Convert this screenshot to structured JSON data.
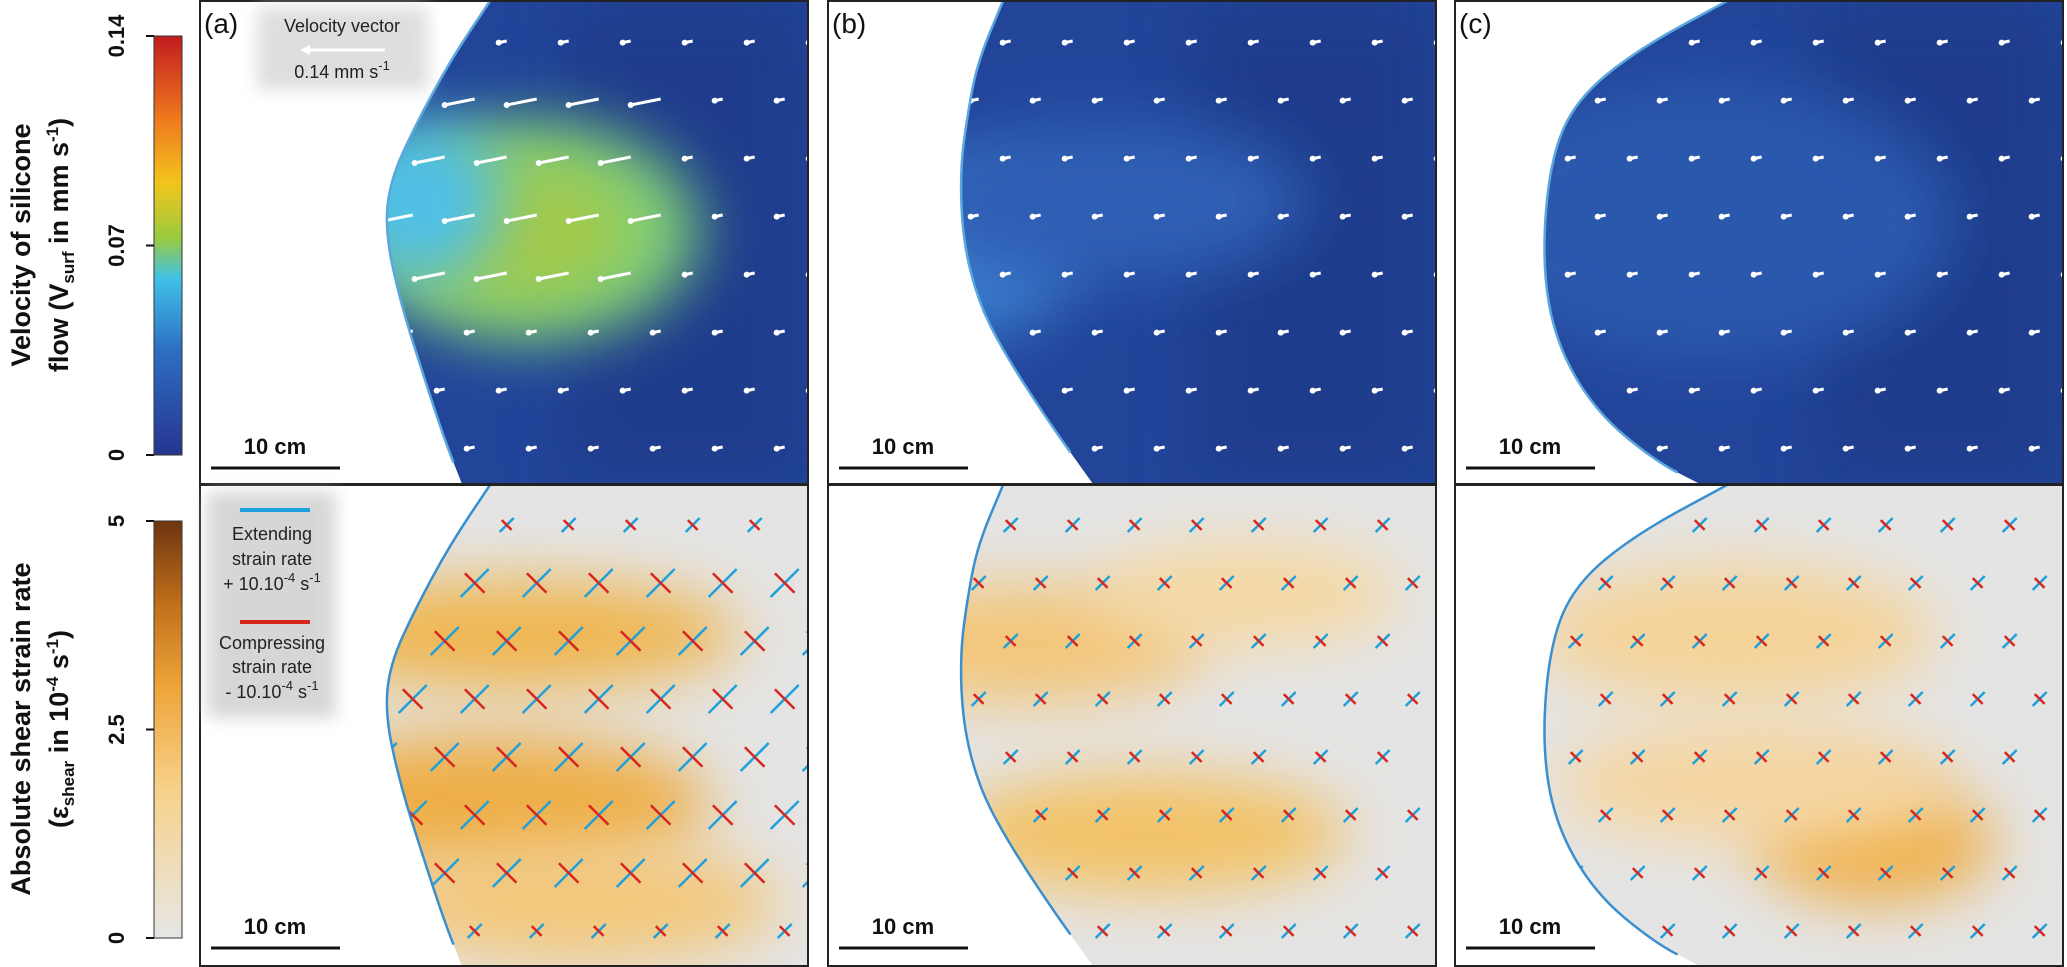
{
  "colorbars": [
    {
      "title": {
        "line1": "Velocity of silicone",
        "pre": "flow (V",
        "sub": "surf",
        "mid": " in mm s",
        "sup": "-1",
        "end": ")"
      },
      "ticks": [
        0,
        0.07,
        0.14
      ]
    },
    {
      "title": {
        "line1": "Absolute shear strain rate",
        "pre": "(ε",
        "sub": "shear",
        "mid": " in 10",
        "sup": "-4",
        "mid2": " s",
        "sup2": "-1",
        "end": ")"
      },
      "ticks": [
        0,
        2.5,
        5
      ]
    }
  ],
  "panels": [
    {
      "label": "(a)",
      "scale_top": "10 cm",
      "scale_bottom": "10 cm"
    },
    {
      "label": "(b)",
      "scale_top": "10 cm",
      "scale_bottom": "10 cm"
    },
    {
      "label": "(c)",
      "scale_top": "10 cm",
      "scale_bottom": "10 cm"
    }
  ],
  "velocity_legend": {
    "title": "Velocity vector",
    "value": "0.14 mm s",
    "sup": "-1"
  },
  "strain_legend": {
    "extending": {
      "line1": "Extending",
      "line2": "strain rate",
      "value": "+ 10.10",
      "sup": "-4",
      "unit": " s",
      "sup2": "-1"
    },
    "compressing": {
      "line1": "Compressing",
      "line2": "strain rate",
      "value": "- 10.10",
      "sup": "-4",
      "unit": " s",
      "sup2": "-1"
    }
  }
}
